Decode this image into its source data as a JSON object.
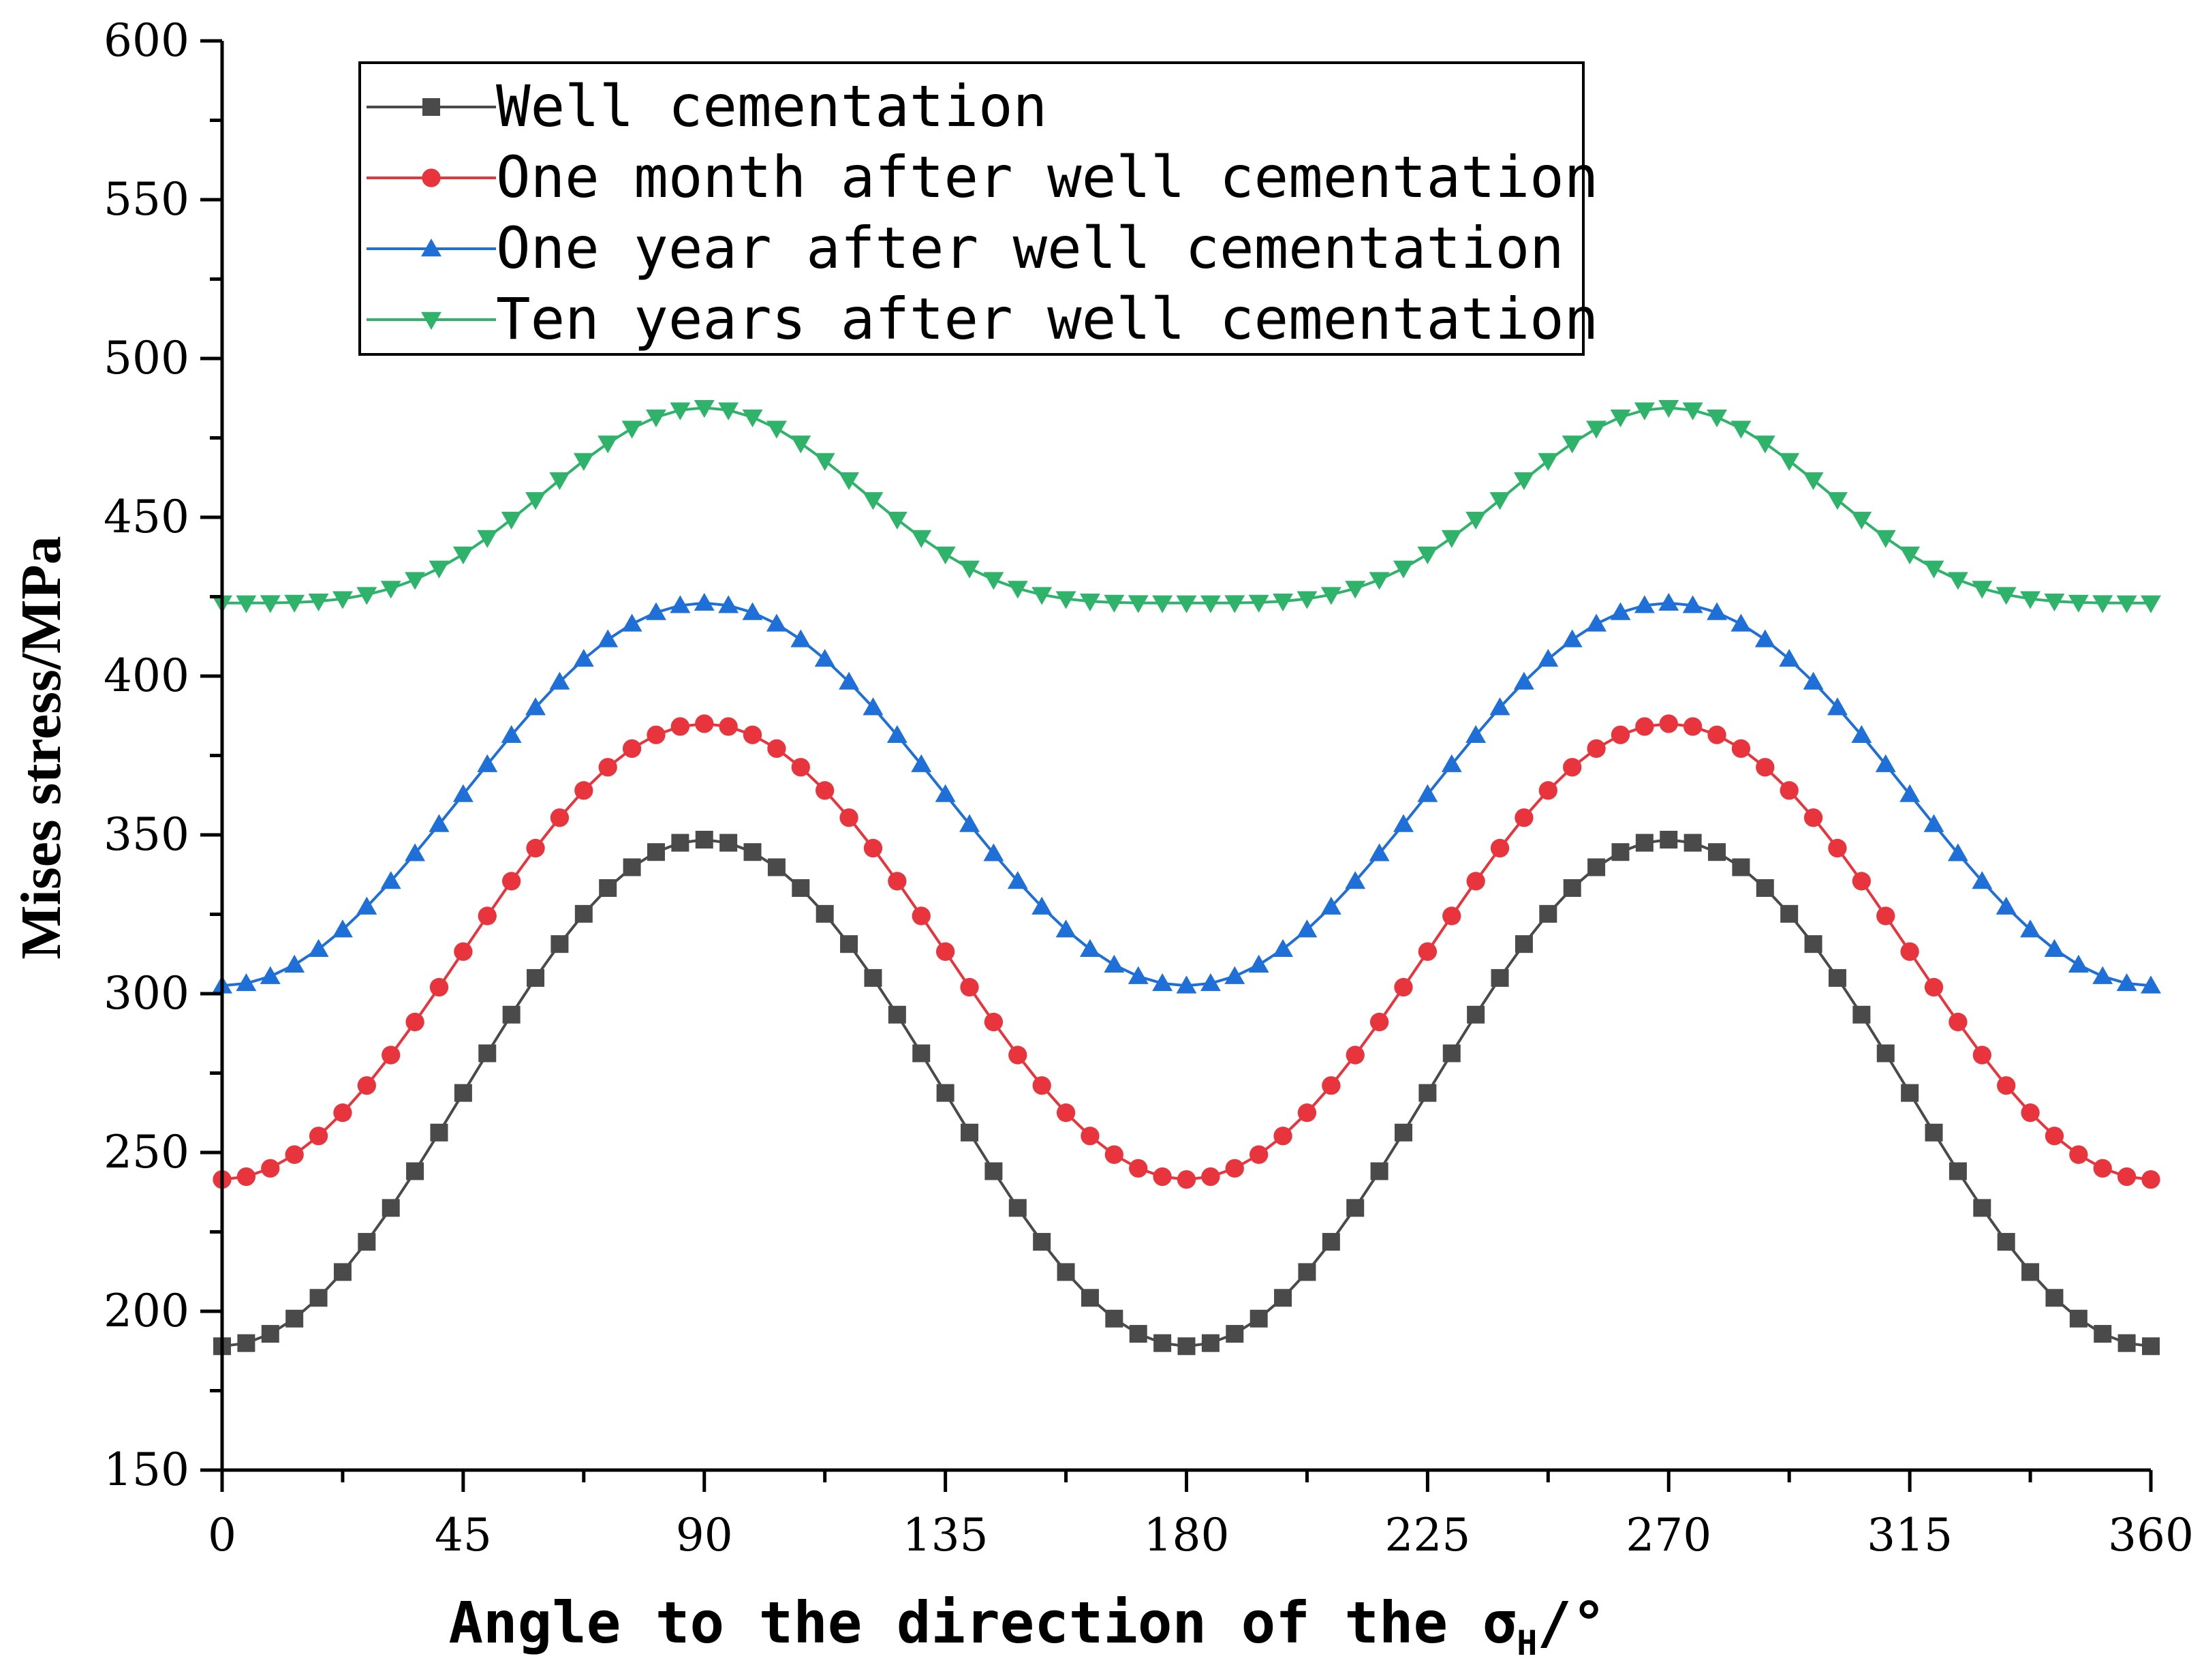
{
  "chart_data": {
    "type": "line",
    "title": "",
    "xlabel": {
      "main": "Angle to the direction of the σ",
      "subscript": "H",
      "suffix": "/°"
    },
    "ylabel": "Mises stress/MPa",
    "xlim": [
      0,
      360
    ],
    "ylim": [
      150,
      600
    ],
    "xticks": [
      0,
      45,
      90,
      135,
      180,
      225,
      270,
      315,
      360
    ],
    "yticks": [
      150,
      200,
      250,
      300,
      350,
      400,
      450,
      500,
      550,
      600
    ],
    "xtick_labels": [
      "0",
      "45",
      "90",
      "135",
      "180",
      "225",
      "270",
      "315",
      "360"
    ],
    "ytick_labels": [
      "150",
      "200",
      "250",
      "300",
      "350",
      "400",
      "450",
      "500",
      "550",
      "600"
    ],
    "x_step": 4.5,
    "legend_position": "top-left",
    "series": [
      {
        "name": "Well cementation",
        "color": "#4a4a4a",
        "marker": "square",
        "min": 189,
        "max": 348.5,
        "shape": "cos2"
      },
      {
        "name": "One month after well cementation",
        "color": "#e8343c",
        "marker": "circle",
        "min": 241.5,
        "max": 385,
        "shape": "cos2"
      },
      {
        "name": "One year after well cementation",
        "color": "#1f6fd8",
        "marker": "triangle-up",
        "min": 302.5,
        "max": 423,
        "shape": "cos2"
      },
      {
        "name": "Ten years after well cementation",
        "color": "#2fb36b",
        "marker": "triangle-down",
        "min": 423,
        "max": 484.5,
        "shape": "cos4"
      }
    ]
  }
}
